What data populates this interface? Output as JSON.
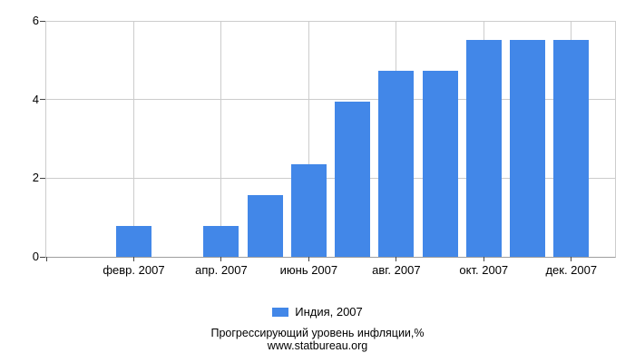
{
  "chart_data": {
    "type": "bar",
    "title": "Прогрессирующий уровень инфляции,%",
    "subtitle": "www.statbureau.org",
    "legend_label": "Индия, 2007",
    "legend_position": "bottom",
    "categories": [
      "",
      "февр. 2007",
      "",
      "апр. 2007",
      "",
      "июнь 2007",
      "",
      "авг. 2007",
      "",
      "окт. 2007",
      "",
      "дек. 2007"
    ],
    "series": [
      {
        "name": "Индия, 2007",
        "color": "#4287e8",
        "values": [
          0,
          0.79,
          0,
          0.79,
          1.57,
          2.36,
          3.94,
          4.72,
          4.72,
          5.51,
          5.51,
          5.51
        ]
      }
    ],
    "xlabel": "",
    "ylabel": "",
    "ylim": [
      0,
      6
    ],
    "yticks": [
      0,
      2,
      4,
      6
    ],
    "grid": true
  },
  "legend": {
    "label": "Индия, 2007"
  },
  "footer": {
    "line1": "Прогрессирующий уровень инфляции,%",
    "line2": "www.statbureau.org"
  },
  "colors": {
    "bar": "#4287e8",
    "grid": "#cccccc",
    "axis": "#9e9e9e",
    "tick": "#444444",
    "text": "#000000"
  }
}
